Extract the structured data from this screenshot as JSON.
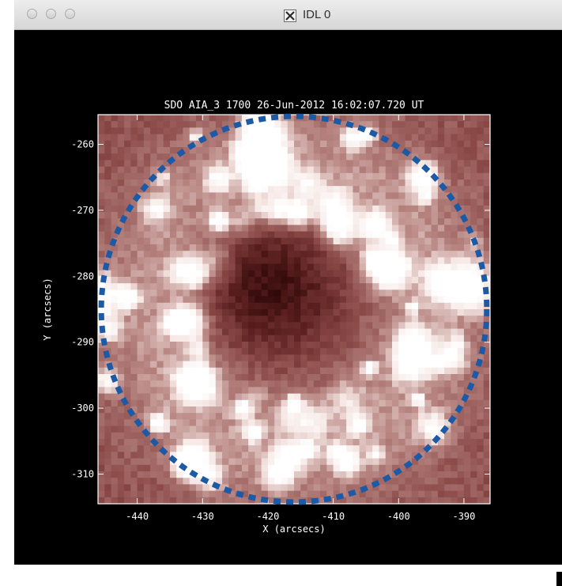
{
  "window": {
    "title": "IDL 0",
    "app_icon": "x11-icon",
    "controls": [
      "close-button",
      "minimize-button",
      "zoom-button"
    ]
  },
  "plot": {
    "title": "SDO AIA_3 1700 26-Jun-2012 16:02:07.720 UT",
    "xlabel": "X (arcsecs)",
    "ylabel": "Y (arcsecs)"
  },
  "chart_data": {
    "type": "heatmap",
    "title": "SDO AIA_3 1700 26-Jun-2012 16:02:07.720 UT",
    "xlabel": "X (arcsecs)",
    "ylabel": "Y (arcsecs)",
    "xlim": [
      -446,
      -386
    ],
    "ylim": [
      -314.5,
      -255.5
    ],
    "x_ticks": [
      -440,
      -430,
      -420,
      -410,
      -400,
      -390
    ],
    "y_ticks": [
      -260,
      -270,
      -280,
      -290,
      -300,
      -310
    ],
    "colormap": [
      "#260303",
      "#5a1f1f",
      "#8b4a48",
      "#b88682",
      "#f5e6e3",
      "#ffffff"
    ],
    "overlay": {
      "shape": "dashed-circle",
      "color": "#1d5aa6",
      "center": [
        -416,
        -285
      ],
      "radius": 29.5
    },
    "dark_core_center": [
      -420,
      -281
    ],
    "bright_ring_center": [
      -416,
      -285
    ]
  }
}
